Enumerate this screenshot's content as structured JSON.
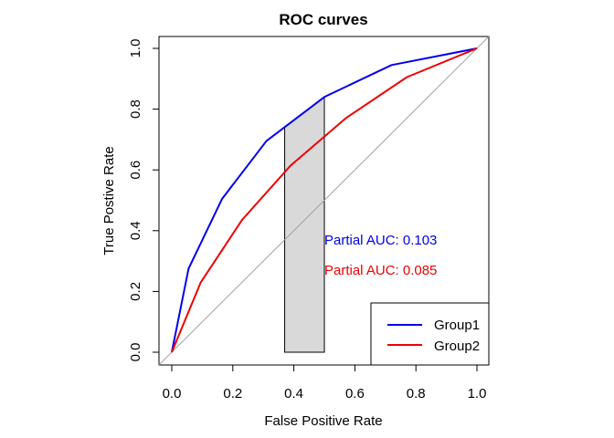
{
  "chart_data": {
    "type": "line",
    "title": "ROC curves",
    "xlabel": "False Positive Rate",
    "ylabel": "True Postive Rate",
    "xlim": [
      0,
      1
    ],
    "ylim": [
      0,
      1
    ],
    "x_ticks": [
      "0.0",
      "0.2",
      "0.4",
      "0.6",
      "0.8",
      "1.0"
    ],
    "y_ticks": [
      "0.0",
      "0.2",
      "0.4",
      "0.6",
      "0.8",
      "1.0"
    ],
    "grid": false,
    "diagonal_reference": true,
    "shaded_region": {
      "x_from": 0.37,
      "x_to": 0.5,
      "color": "#d9d9d9"
    },
    "series": [
      {
        "name": "Group1",
        "color": "#0000ee",
        "x": [
          0,
          0.055,
          0.165,
          0.31,
          0.5,
          0.72,
          1.0
        ],
        "y": [
          0,
          0.275,
          0.505,
          0.695,
          0.84,
          0.945,
          1.0
        ]
      },
      {
        "name": "Group2",
        "color": "#ee0000",
        "x": [
          0,
          0.095,
          0.23,
          0.39,
          0.57,
          0.77,
          1.0
        ],
        "y": [
          0,
          0.23,
          0.435,
          0.615,
          0.77,
          0.905,
          1.0
        ]
      }
    ],
    "annotations": [
      {
        "text": "Partial AUC: 0.103",
        "color": "#0000ee",
        "x": 0.5,
        "y": 0.37
      },
      {
        "text": "Partial AUC: 0.085",
        "color": "#ee0000",
        "x": 0.5,
        "y": 0.27
      }
    ],
    "legend_position": "bottom-right"
  }
}
